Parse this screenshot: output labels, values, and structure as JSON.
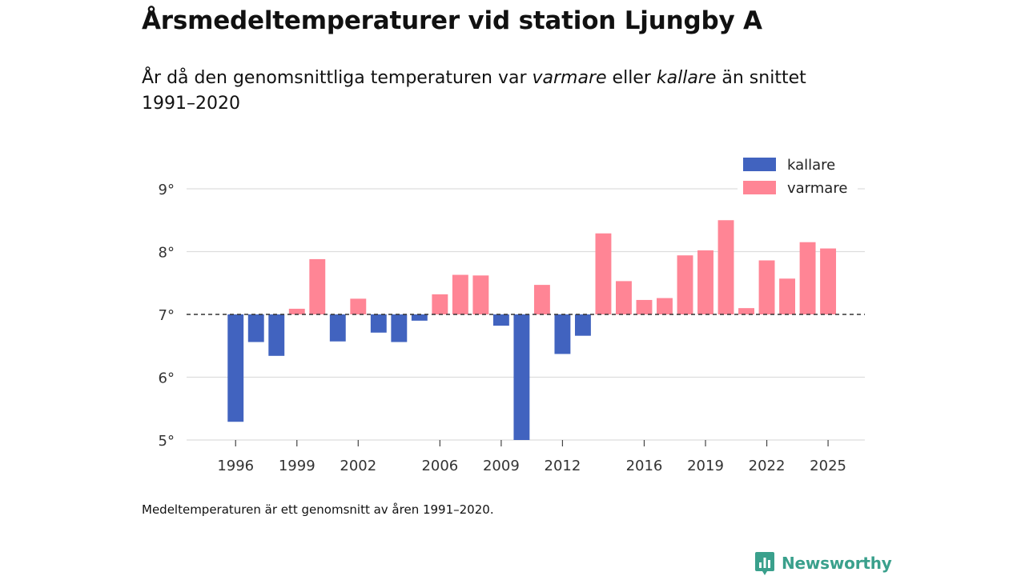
{
  "header": {
    "title": "Årsmedeltemperaturer vid station Ljungby A",
    "subtitle_part1": "År då den genomsnittliga temperaturen var ",
    "subtitle_warm": "varmare",
    "subtitle_part2": " eller ",
    "subtitle_cold": "kallare",
    "subtitle_part3": " än snittet 1991–2020"
  },
  "footer": {
    "note": "Medeltemperaturen är ett genomsnitt av åren 1991–2020.",
    "brand": "Newsworthy"
  },
  "colors": {
    "warm": "#ff8595",
    "cold": "#4163bf",
    "grid": "#dddddd",
    "brand": "#3aa08c"
  },
  "chart_data": {
    "type": "bar",
    "title": "Årsmedeltemperaturer vid station Ljungby A",
    "baseline": 7.0,
    "ylim": [
      5,
      9
    ],
    "yticks": [
      5,
      6,
      7,
      8,
      9
    ],
    "ytick_suffix": "°",
    "xlim": [
      1993.6,
      2026.8
    ],
    "xticks": [
      1996,
      1999,
      2002,
      2006,
      2009,
      2012,
      2016,
      2019,
      2022,
      2025
    ],
    "legend": {
      "position": "top-right",
      "entries": [
        {
          "key": "cold",
          "label": "kallare"
        },
        {
          "key": "warm",
          "label": "varmare"
        }
      ]
    },
    "years": [
      1996,
      1997,
      1998,
      1999,
      2000,
      2001,
      2002,
      2003,
      2004,
      2005,
      2006,
      2007,
      2008,
      2009,
      2010,
      2011,
      2012,
      2013,
      2014,
      2015,
      2016,
      2017,
      2018,
      2019,
      2020,
      2021,
      2022,
      2023,
      2024,
      2025
    ],
    "values": [
      5.29,
      6.56,
      6.34,
      7.09,
      7.88,
      6.57,
      7.25,
      6.71,
      6.56,
      6.9,
      7.32,
      7.63,
      7.62,
      6.82,
      4.94,
      7.47,
      6.37,
      6.66,
      8.29,
      7.53,
      7.23,
      7.26,
      7.94,
      8.02,
      8.5,
      7.1,
      7.86,
      7.57,
      8.15,
      8.05
    ]
  }
}
